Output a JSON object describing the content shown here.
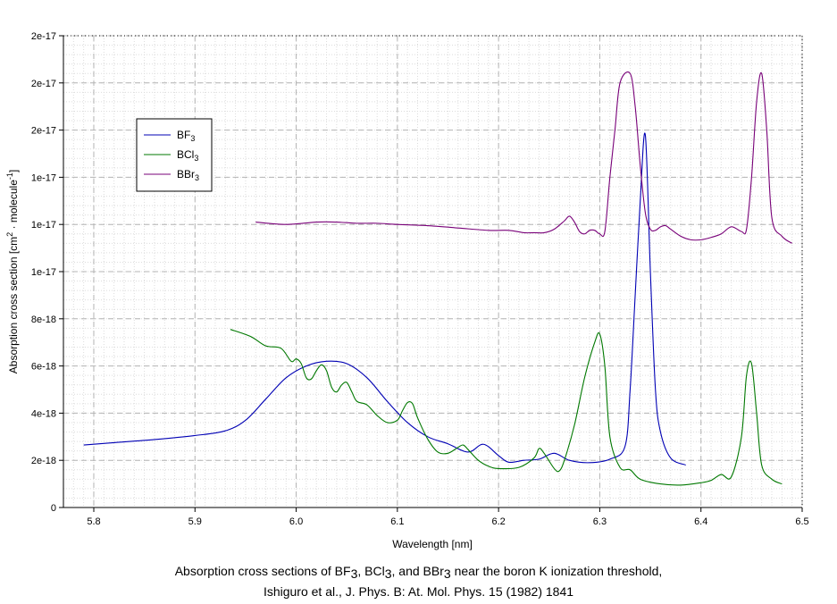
{
  "chart_data": {
    "type": "line",
    "xlabel": "Wavelength [nm]",
    "ylabel_parts": [
      "Absorption cross section [cm",
      "2",
      " · molecule",
      "-1",
      "]"
    ],
    "xlim": [
      5.77,
      6.5
    ],
    "ylim": [
      0,
      2e-17
    ],
    "x_ticks": [
      {
        "value": 5.8,
        "label": "5.8"
      },
      {
        "value": 5.9,
        "label": "5.9"
      },
      {
        "value": 6.0,
        "label": "6.0"
      },
      {
        "value": 6.1,
        "label": "6.1"
      },
      {
        "value": 6.2,
        "label": "6.2"
      },
      {
        "value": 6.3,
        "label": "6.3"
      },
      {
        "value": 6.4,
        "label": "6.4"
      },
      {
        "value": 6.5,
        "label": "6.5"
      }
    ],
    "y_ticks": [
      {
        "value": 0,
        "label": "0"
      },
      {
        "value": 2e-18,
        "label": "2e-18"
      },
      {
        "value": 4e-18,
        "label": "4e-18"
      },
      {
        "value": 6e-18,
        "label": "6e-18"
      },
      {
        "value": 8e-18,
        "label": "8e-18"
      },
      {
        "value": 1e-17,
        "label": "1e-17"
      },
      {
        "value": 1.2e-17,
        "label": "1e-17"
      },
      {
        "value": 1.4e-17,
        "label": "1e-17"
      },
      {
        "value": 1.6e-17,
        "label": "2e-17"
      },
      {
        "value": 1.8e-17,
        "label": "2e-17"
      },
      {
        "value": 2e-17,
        "label": "2e-17"
      }
    ],
    "grid": true,
    "legend_position": "upper-left",
    "series": [
      {
        "name": "BF3",
        "name_main": "BF",
        "name_sub": "3",
        "color": "#0000b4",
        "x": [
          5.79,
          5.82,
          5.86,
          5.9,
          5.93,
          5.95,
          5.97,
          5.99,
          6.01,
          6.03,
          6.05,
          6.07,
          6.09,
          6.11,
          6.13,
          6.15,
          6.17,
          6.185,
          6.2,
          6.21,
          6.225,
          6.24,
          6.255,
          6.27,
          6.29,
          6.31,
          6.325,
          6.33,
          6.335,
          6.34,
          6.345,
          6.35,
          6.355,
          6.36,
          6.37,
          6.385
        ],
        "y": [
          2.65e-18,
          2.75e-18,
          2.88e-18,
          3.05e-18,
          3.25e-18,
          3.7e-18,
          4.6e-18,
          5.5e-18,
          6e-18,
          6.2e-18,
          6.1e-18,
          5.5e-18,
          4.5e-18,
          3.6e-18,
          3e-18,
          2.7e-18,
          2.35e-18,
          2.68e-18,
          2.2e-18,
          1.92e-18,
          2e-18,
          2.05e-18,
          2.3e-18,
          2e-18,
          1.9e-18,
          2.05e-18,
          2.6e-18,
          5e-18,
          9e-18,
          1.3e-17,
          1.58e-17,
          1e-17,
          5e-18,
          3.2e-18,
          2.1e-18,
          1.8e-18
        ]
      },
      {
        "name": "BCl3",
        "name_main": "BCl",
        "name_sub": "3",
        "color": "#007800",
        "x": [
          5.935,
          5.955,
          5.97,
          5.985,
          5.995,
          6.0,
          6.005,
          6.01,
          6.015,
          6.02,
          6.025,
          6.03,
          6.035,
          6.04,
          6.045,
          6.05,
          6.055,
          6.06,
          6.07,
          6.08,
          6.09,
          6.1,
          6.105,
          6.11,
          6.115,
          6.12,
          6.13,
          6.14,
          6.15,
          6.16,
          6.165,
          6.17,
          6.18,
          6.19,
          6.2,
          6.22,
          6.235,
          6.24,
          6.245,
          6.255,
          6.26,
          6.265,
          6.275,
          6.285,
          6.295,
          6.3,
          6.305,
          6.31,
          6.32,
          6.33,
          6.34,
          6.36,
          6.38,
          6.4,
          6.41,
          6.42,
          6.43,
          6.44,
          6.445,
          6.45,
          6.455,
          6.46,
          6.47,
          6.48
        ],
        "y": [
          7.55e-18,
          7.25e-18,
          6.85e-18,
          6.75e-18,
          6.2e-18,
          6.3e-18,
          6.1e-18,
          5.5e-18,
          5.45e-18,
          5.8e-18,
          6.05e-18,
          5.8e-18,
          5.1e-18,
          4.9e-18,
          5.2e-18,
          5.3e-18,
          4.9e-18,
          4.5e-18,
          4.35e-18,
          3.9e-18,
          3.6e-18,
          3.7e-18,
          4.1e-18,
          4.45e-18,
          4.4e-18,
          3.8e-18,
          2.9e-18,
          2.35e-18,
          2.3e-18,
          2.55e-18,
          2.65e-18,
          2.45e-18,
          2e-18,
          1.75e-18,
          1.65e-18,
          1.7e-18,
          2.1e-18,
          2.5e-18,
          2.3e-18,
          1.65e-18,
          1.55e-18,
          2e-18,
          3.5e-18,
          5.5e-18,
          7e-18,
          7.35e-18,
          6e-18,
          3e-18,
          1.7e-18,
          1.6e-18,
          1.2e-18,
          1e-18,
          9.5e-19,
          1.05e-18,
          1.15e-18,
          1.4e-18,
          1.3e-18,
          3e-18,
          5.6e-18,
          6.1e-18,
          4e-18,
          1.8e-18,
          1.2e-18,
          1e-18
        ]
      },
      {
        "name": "BBr3",
        "name_main": "BBr",
        "name_sub": "3",
        "color": "#780078",
        "x": [
          5.96,
          5.99,
          6.02,
          6.04,
          6.06,
          6.08,
          6.1,
          6.13,
          6.16,
          6.19,
          6.21,
          6.225,
          6.235,
          6.245,
          6.255,
          6.265,
          6.27,
          6.275,
          6.28,
          6.285,
          6.29,
          6.295,
          6.3,
          6.305,
          6.31,
          6.315,
          6.32,
          6.33,
          6.335,
          6.34,
          6.345,
          6.35,
          6.355,
          6.36,
          6.365,
          6.37,
          6.38,
          6.39,
          6.4,
          6.41,
          6.42,
          6.43,
          6.44,
          6.445,
          6.45,
          6.455,
          6.46,
          6.465,
          6.47,
          6.48,
          6.49
        ],
        "y": [
          1.21e-17,
          1.2e-17,
          1.21e-17,
          1.21e-17,
          1.205e-17,
          1.205e-17,
          1.2e-17,
          1.195e-17,
          1.185e-17,
          1.175e-17,
          1.175e-17,
          1.165e-17,
          1.165e-17,
          1.165e-17,
          1.18e-17,
          1.215e-17,
          1.235e-17,
          1.21e-17,
          1.17e-17,
          1.16e-17,
          1.175e-17,
          1.175e-17,
          1.16e-17,
          1.17e-17,
          1.4e-17,
          1.6e-17,
          1.8e-17,
          1.84e-17,
          1.7e-17,
          1.45e-17,
          1.25e-17,
          1.18e-17,
          1.175e-17,
          1.19e-17,
          1.195e-17,
          1.18e-17,
          1.15e-17,
          1.135e-17,
          1.135e-17,
          1.145e-17,
          1.16e-17,
          1.19e-17,
          1.17e-17,
          1.18e-17,
          1.4e-17,
          1.72e-17,
          1.84e-17,
          1.6e-17,
          1.23e-17,
          1.15e-17,
          1.12e-17
        ]
      }
    ]
  },
  "caption": {
    "line1_parts": [
      "Absorption cross sections of BF",
      "3",
      ", BCl",
      "3",
      ", and BBr",
      "3",
      " near the boron K ionization threshold,"
    ],
    "line2": "Ishiguro et al., J. Phys. B: At. Mol. Phys. 15 (1982) 1841"
  }
}
